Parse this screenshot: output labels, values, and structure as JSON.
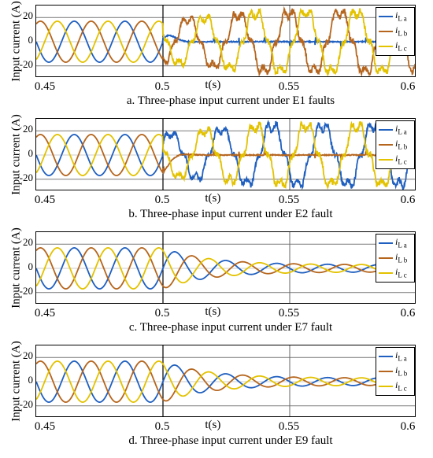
{
  "chart_data": [
    {
      "type": "line",
      "caption": "a.  Three-phase input current under E1 faults",
      "ylabel": "Input current (A)",
      "xlabel": "t(s)",
      "xlim": [
        0.45,
        0.6
      ],
      "ylim": [
        -30,
        30
      ],
      "x_ticks": [
        "0.45",
        "0.5",
        "0.55",
        "0.6"
      ],
      "y_ticks": [
        "20",
        "0",
        "-20"
      ],
      "grid": "y-only at ±20, 0 plus x at 0.5 and 0.55",
      "legend_position": "top-right",
      "series": [
        {
          "name": "iLa",
          "symbol": "i",
          "sub": "L a",
          "color": "#1f5fbf",
          "pre_amp": 17,
          "phase_deg": 0,
          "post": {
            "amp_end": 3,
            "shape": "near-zero spikes after fault"
          }
        },
        {
          "name": "iLb",
          "symbol": "i",
          "sub": "L b",
          "color": "#b5651d",
          "pre_amp": 17,
          "phase_deg": -120,
          "post": {
            "amp_end": 25,
            "shape": "growing distorted"
          }
        },
        {
          "name": "iLc",
          "symbol": "i",
          "sub": "L c",
          "color": "#e3c200",
          "pre_amp": 17,
          "phase_deg": 120,
          "post": {
            "amp_end": 25,
            "shape": "growing distorted"
          }
        }
      ]
    },
    {
      "type": "line",
      "caption": "b. Three-phase input current under E2 fault",
      "ylabel": "Input current (A)",
      "xlabel": "t(s)",
      "xlim": [
        0.45,
        0.6
      ],
      "ylim": [
        -30,
        30
      ],
      "x_ticks": [
        "0.45",
        "0.5",
        "0.55",
        "0.6"
      ],
      "y_ticks": [
        "20",
        "0",
        "-20"
      ],
      "legend_position": "top-right",
      "series": [
        {
          "name": "iLa",
          "symbol": "i",
          "sub": "L a",
          "color": "#1f5fbf",
          "pre_amp": 17,
          "phase_deg": 0,
          "post": {
            "amp_end": 25,
            "shape": "growing distorted"
          }
        },
        {
          "name": "iLb",
          "symbol": "i",
          "sub": "L b",
          "color": "#b5651d",
          "pre_amp": 17,
          "phase_deg": -120,
          "post": {
            "amp_end": 3,
            "shape": "near-zero spikes after fault"
          }
        },
        {
          "name": "iLc",
          "symbol": "i",
          "sub": "L c",
          "color": "#e3c200",
          "pre_amp": 17,
          "phase_deg": 120,
          "post": {
            "amp_end": 25,
            "shape": "growing distorted"
          }
        }
      ]
    },
    {
      "type": "line",
      "caption": "c. Three-phase input current under E7 fault",
      "ylabel": "Input current (A)",
      "xlabel": "t(s)",
      "xlim": [
        0.45,
        0.6
      ],
      "ylim": [
        -30,
        30
      ],
      "x_ticks": [
        "0.45",
        "0.5",
        "0.55",
        "0.6"
      ],
      "y_ticks": [
        "20",
        "0",
        "-20"
      ],
      "legend_position": "top-right",
      "series": [
        {
          "name": "iLa",
          "symbol": "i",
          "sub": "L a",
          "color": "#1f5fbf",
          "pre_amp": 17,
          "phase_deg": 0,
          "post": {
            "amp_end": 3,
            "shape": "decaying"
          }
        },
        {
          "name": "iLb",
          "symbol": "i",
          "sub": "L b",
          "color": "#b5651d",
          "pre_amp": 17,
          "phase_deg": -120,
          "post": {
            "amp_end": 3,
            "shape": "decaying"
          }
        },
        {
          "name": "iLc",
          "symbol": "i",
          "sub": "L c",
          "color": "#e3c200",
          "pre_amp": 17,
          "phase_deg": 120,
          "post": {
            "amp_end": 3,
            "shape": "decaying"
          }
        }
      ]
    },
    {
      "type": "line",
      "caption": "d. Three-phase input current under E9 fault",
      "ylabel": "Input current (A)",
      "xlabel": "t(s)",
      "xlim": [
        0.45,
        0.6
      ],
      "ylim": [
        -30,
        30
      ],
      "x_ticks": [
        "0.45",
        "0.5",
        "0.55",
        "0.6"
      ],
      "y_ticks": [
        "20",
        "0",
        "-20"
      ],
      "legend_position": "top-right",
      "series": [
        {
          "name": "iLa",
          "symbol": "i",
          "sub": "L a",
          "color": "#1f5fbf",
          "pre_amp": 17,
          "phase_deg": 0,
          "post": {
            "amp_end": 3,
            "shape": "decaying"
          }
        },
        {
          "name": "iLb",
          "symbol": "i",
          "sub": "L b",
          "color": "#b5651d",
          "pre_amp": 17,
          "phase_deg": -120,
          "post": {
            "amp_end": 3,
            "shape": "decaying"
          }
        },
        {
          "name": "iLc",
          "symbol": "i",
          "sub": "L c",
          "color": "#e3c200",
          "pre_amp": 17,
          "phase_deg": 120,
          "post": {
            "amp_end": 3,
            "shape": "decaying"
          }
        }
      ]
    }
  ],
  "fault_time_s": 0.5,
  "frequency_hz": 50
}
